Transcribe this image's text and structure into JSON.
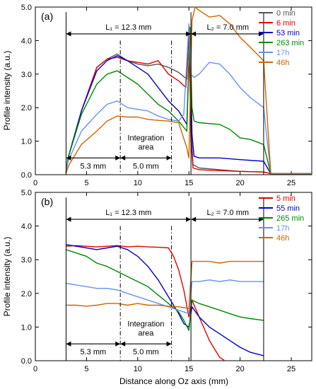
{
  "figure": {
    "xlabel": "Distance along Oz axis (mm)",
    "ylabel": "Profile intensity  (a.u.)"
  },
  "chart_data": [
    {
      "type": "line",
      "panel_label": "(a)",
      "xlim": [
        0,
        27
      ],
      "ylim": [
        0,
        5
      ],
      "xticks": [
        0,
        5,
        10,
        15,
        20,
        25
      ],
      "yticks": [
        0.0,
        1.0,
        2.0,
        3.0,
        4.0,
        5.0
      ],
      "ytick_labels": [
        "0.0",
        "1.0",
        "2.0",
        "3.0",
        "4.0",
        "5.0"
      ],
      "xlabel": "",
      "ylabel": "Profile intensity  (a.u.)",
      "legend_position": "top-right",
      "annotations": {
        "L1": "L₁ = 12.3 mm",
        "L2": "L₂ = 7.0 mm",
        "d1": "5.3 mm",
        "d2": "5.0 mm",
        "integration": [
          "Integration",
          "area"
        ]
      },
      "series": [
        {
          "name": "0 min",
          "color": "#555555",
          "x": [
            3.0,
            3.2,
            4.5,
            6.0,
            7.0,
            8.0,
            9.0,
            10.0,
            11.0,
            12.0,
            13.0,
            14.0,
            14.8,
            15.0,
            15.2,
            15.4,
            16,
            18,
            20,
            22.3,
            23,
            27
          ],
          "y": [
            0.05,
            0.5,
            1.9,
            3.2,
            3.45,
            3.6,
            3.4,
            3.3,
            3.25,
            3.3,
            3.2,
            3.05,
            2.85,
            4.2,
            1.5,
            0.3,
            0.2,
            0.15,
            0.1,
            0.08,
            0.03,
            0.03
          ]
        },
        {
          "name": "6 min",
          "color": "#e00000",
          "x": [
            3.0,
            3.2,
            4.5,
            6.0,
            7.0,
            8.0,
            9.0,
            10.0,
            11.0,
            12.0,
            13.0,
            14.0,
            14.7,
            15.0,
            15.2,
            15.4,
            16,
            18,
            20,
            22.3,
            23,
            27
          ],
          "y": [
            0.05,
            0.5,
            1.9,
            3.2,
            3.45,
            3.5,
            3.4,
            3.35,
            3.3,
            3.4,
            3.0,
            2.8,
            2.6,
            4.4,
            1.0,
            0.2,
            0.15,
            0.12,
            0.1,
            0.08,
            0.03,
            0.03
          ]
        },
        {
          "name": "53 min",
          "color": "#0000cc",
          "x": [
            3.0,
            3.2,
            4.5,
            6.0,
            7.0,
            8.0,
            9.0,
            10.0,
            11.0,
            12.0,
            13.0,
            14.0,
            14.8,
            15.1,
            15.3,
            15.5,
            16,
            18,
            20,
            22.3,
            23,
            27
          ],
          "y": [
            0.05,
            0.5,
            1.9,
            3.1,
            3.4,
            3.55,
            3.4,
            3.2,
            3.0,
            2.6,
            2.2,
            1.9,
            1.5,
            4.3,
            1.2,
            0.55,
            0.5,
            0.5,
            0.45,
            0.4,
            0.03,
            0.03
          ]
        },
        {
          "name": "263 min",
          "color": "#008800",
          "x": [
            3.0,
            3.2,
            4.5,
            6.0,
            7.0,
            8.0,
            9.0,
            10.0,
            11.0,
            12.0,
            13.0,
            14.0,
            14.8,
            15.1,
            15.3,
            15.5,
            16,
            18,
            19,
            20,
            21,
            22.3,
            23,
            27
          ],
          "y": [
            0.05,
            0.5,
            1.8,
            2.7,
            3.0,
            3.1,
            2.9,
            2.7,
            2.4,
            2.1,
            1.9,
            1.6,
            1.3,
            4.4,
            2.0,
            1.6,
            1.55,
            1.5,
            1.35,
            1.1,
            1.05,
            0.9,
            0.03,
            0.03
          ]
        },
        {
          "name": "17h",
          "color": "#6a8ff0",
          "x": [
            3.0,
            3.2,
            4.5,
            6.0,
            7.0,
            8.0,
            9.0,
            10.0,
            11.0,
            12.0,
            13.0,
            14.0,
            14.5,
            15.0,
            15.2,
            15.5,
            16,
            17,
            18,
            19,
            20,
            21,
            22.3,
            23,
            27
          ],
          "y": [
            0.05,
            0.4,
            1.3,
            1.8,
            2.1,
            2.2,
            2.0,
            1.95,
            1.9,
            1.75,
            1.65,
            1.6,
            1.8,
            4.5,
            3.0,
            2.9,
            3.0,
            3.35,
            3.3,
            3.0,
            2.6,
            2.3,
            2.0,
            0.03,
            0.03
          ]
        },
        {
          "name": "46h",
          "color": "#cc6600",
          "x": [
            3.0,
            3.3,
            4.5,
            6.0,
            7.0,
            8.0,
            9.0,
            10.0,
            11.0,
            12.0,
            13.0,
            14.0,
            14.8,
            15.0,
            15.3,
            15.6,
            16,
            17,
            18,
            19,
            20,
            21,
            22.3,
            23,
            27
          ],
          "y": [
            0.05,
            0.3,
            0.9,
            1.3,
            1.6,
            1.75,
            1.72,
            1.72,
            1.65,
            1.62,
            1.6,
            1.55,
            0.8,
            0.5,
            4.6,
            5.0,
            4.9,
            4.7,
            4.75,
            4.5,
            4.1,
            3.8,
            3.4,
            0.03,
            0.03
          ]
        }
      ]
    },
    {
      "type": "line",
      "panel_label": "(b)",
      "xlim": [
        0,
        27
      ],
      "ylim": [
        0,
        5
      ],
      "xticks": [
        0,
        5,
        10,
        15,
        20,
        25
      ],
      "yticks": [
        0.0,
        1.0,
        2.0,
        3.0,
        4.0,
        5.0
      ],
      "ytick_labels": [
        "0.0",
        "1.0",
        "2.0",
        "3.0",
        "4.0",
        "5.0"
      ],
      "xlabel": "Distance along Oz axis (mm)",
      "ylabel": "Profile intensity  (a.u.)",
      "legend_position": "top-right",
      "annotations": {
        "L1": "L₁ = 12.3 mm",
        "L2": "L₂ = 7.0 mm",
        "d1": "5.3 mm",
        "d2": "5.0 mm",
        "integration": [
          "Integration",
          "area"
        ]
      },
      "series": [
        {
          "name": "5 min",
          "color": "#e00000",
          "x": [
            3.0,
            4.0,
            5.0,
            6.0,
            7.0,
            8.0,
            9.0,
            10.0,
            11.0,
            12.0,
            13.0,
            13.5,
            14.0,
            14.5,
            15.0,
            15.3,
            16.0,
            17.0,
            18.0,
            18.5
          ],
          "y": [
            3.4,
            3.42,
            3.4,
            3.38,
            3.4,
            3.42,
            3.38,
            3.4,
            3.38,
            3.37,
            3.35,
            3.1,
            2.7,
            2.1,
            1.3,
            1.8,
            1.3,
            0.6,
            0.1,
            0.0
          ]
        },
        {
          "name": "55 min",
          "color": "#0000cc",
          "x": [
            3.0,
            4.0,
            5.0,
            6.0,
            7.0,
            8.0,
            9.0,
            10.0,
            11.0,
            12.0,
            13.0,
            14.0,
            14.5,
            15.0,
            15.3,
            16.0,
            17.0,
            18.0,
            19.0,
            20.0,
            21.0,
            22.3
          ],
          "y": [
            3.45,
            3.4,
            3.35,
            3.3,
            3.35,
            3.4,
            3.3,
            3.1,
            2.8,
            2.4,
            1.9,
            1.4,
            1.1,
            1.0,
            1.6,
            1.3,
            1.0,
            0.8,
            0.6,
            0.4,
            0.25,
            0.15
          ]
        },
        {
          "name": "265 min",
          "color": "#008800",
          "x": [
            3.0,
            4.0,
            5.0,
            6.0,
            7.0,
            8.0,
            9.0,
            10.0,
            11.0,
            12.0,
            13.0,
            14.0,
            14.5,
            15.0,
            15.3,
            16.0,
            17.0,
            18.0,
            19.0,
            20.0,
            21.0,
            22.3
          ],
          "y": [
            3.3,
            3.2,
            3.1,
            2.9,
            2.8,
            2.65,
            2.5,
            2.35,
            2.2,
            1.95,
            1.7,
            1.45,
            1.2,
            0.9,
            1.8,
            1.7,
            1.6,
            1.5,
            1.4,
            1.3,
            1.25,
            1.2
          ]
        },
        {
          "name": "17h",
          "color": "#6a8ff0",
          "x": [
            3.0,
            4.0,
            5.0,
            6.0,
            7.0,
            8.0,
            9.0,
            10.0,
            11.0,
            12.0,
            13.0,
            14.0,
            15.0,
            15.3,
            16.0,
            17.0,
            18.0,
            19.0,
            20.0,
            21.0,
            22.3
          ],
          "y": [
            2.3,
            2.25,
            2.2,
            2.15,
            2.15,
            2.1,
            2.0,
            1.9,
            1.8,
            1.7,
            1.6,
            1.5,
            1.4,
            2.35,
            2.35,
            2.4,
            2.35,
            2.4,
            2.35,
            2.35,
            2.35
          ]
        },
        {
          "name": "46h",
          "color": "#cc6600",
          "x": [
            3.0,
            4.0,
            5.0,
            6.0,
            7.0,
            8.0,
            9.0,
            10.0,
            11.0,
            12.0,
            13.0,
            14.0,
            15.0,
            15.3,
            16.0,
            17.0,
            18.0,
            19.0,
            20.0,
            21.0,
            22.3
          ],
          "y": [
            1.65,
            1.65,
            1.62,
            1.65,
            1.7,
            1.7,
            1.65,
            1.7,
            1.65,
            1.65,
            1.62,
            1.6,
            1.55,
            2.95,
            2.95,
            2.95,
            2.9,
            2.95,
            2.95,
            2.95,
            2.95
          ]
        }
      ]
    }
  ]
}
